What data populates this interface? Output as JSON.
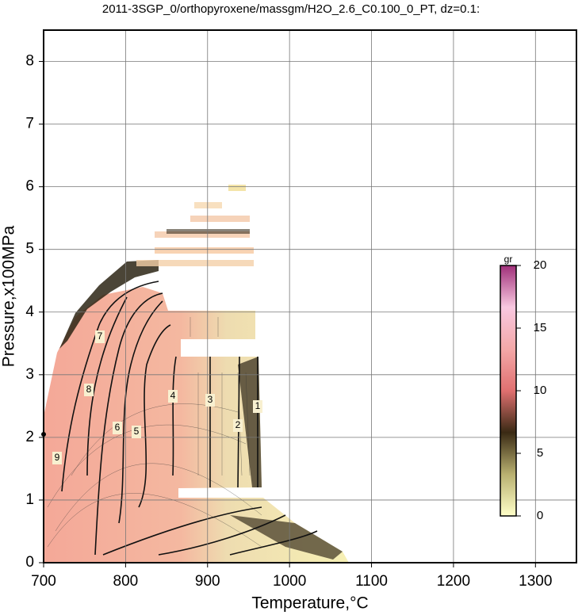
{
  "chart_data": {
    "type": "contour",
    "title": "2011-3SGP_0/orthopyroxene/massgm/H2O_2.6_C0.100_0_PT, dz=0.1:",
    "x_label": "Temperature,°C",
    "y_label": "Pressure,x100MPa",
    "xlim": [
      700,
      1350
    ],
    "ylim": [
      0,
      8.5
    ],
    "xticks": [
      700,
      800,
      900,
      1000,
      1100,
      1200,
      1300
    ],
    "yticks": [
      0,
      1,
      2,
      3,
      4,
      5,
      6,
      7,
      8
    ],
    "grid": true,
    "contour_levels": [
      9,
      8,
      7,
      6,
      5,
      4,
      3,
      2,
      1
    ],
    "colorbar": {
      "label": "gr",
      "lim": [
        0,
        20
      ],
      "ticks": [
        0,
        5,
        10,
        15,
        20
      ],
      "colors": [
        "#ffffc8",
        "#b8b070",
        "#3a2a14",
        "#e07070",
        "#f4a8a8",
        "#f8c8e0",
        "#a0307a"
      ]
    }
  }
}
